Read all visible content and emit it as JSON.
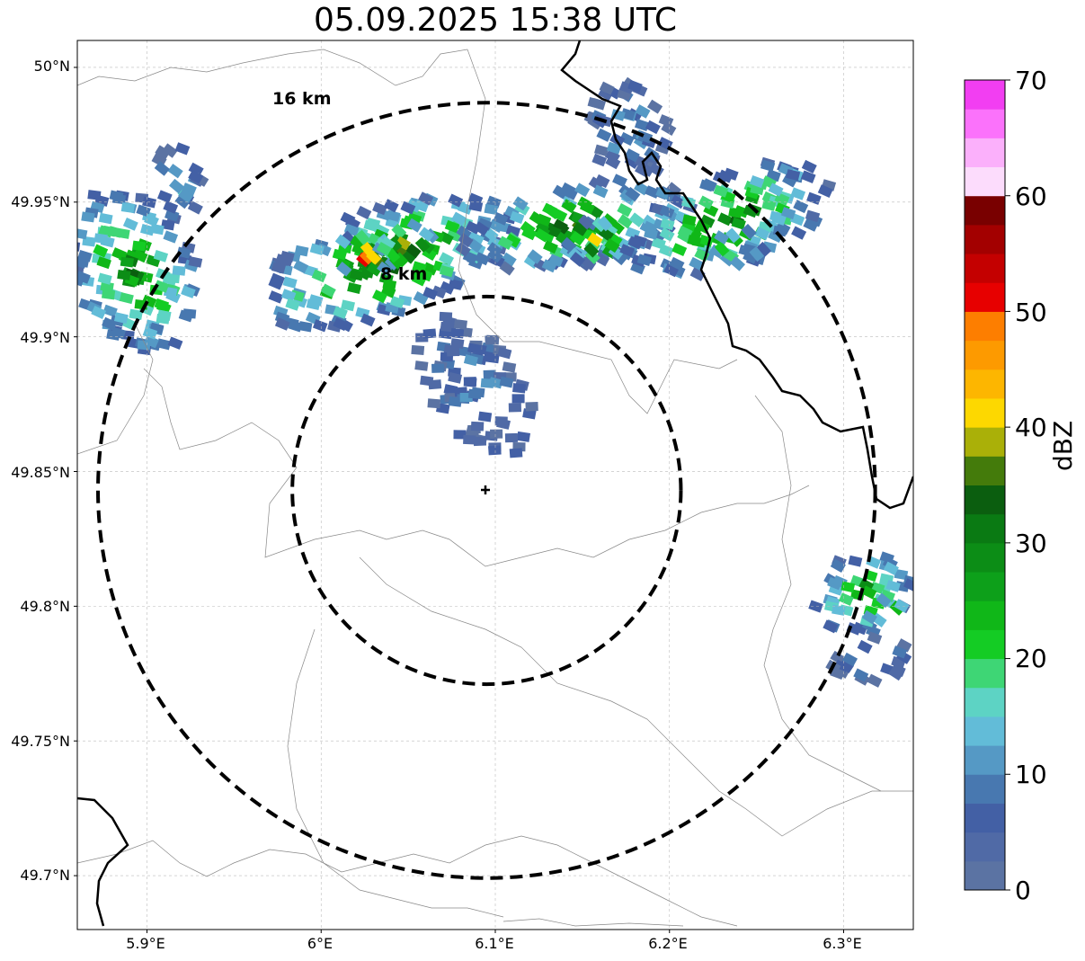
{
  "title": "05.09.2025 15:38 UTC",
  "latitude_labels": [
    "50°N",
    "49.95°N",
    "49.9°N",
    "49.85°N",
    "49.8°N",
    "49.75°N",
    "49.7°N"
  ],
  "longitude_labels": [
    "5.9°E",
    "6°E",
    "6.1°E",
    "6.2°E",
    "6.3°E"
  ],
  "range_rings": [
    {
      "label": "8 km",
      "radius_km": 8
    },
    {
      "label": "16 km",
      "radius_km": 16
    }
  ],
  "radar_site": {
    "lat": 49.843,
    "lon": 6.095,
    "marker": "plus-icon"
  },
  "colorbar": {
    "title": "dBZ",
    "tick_labels": [
      "0",
      "10",
      "20",
      "30",
      "40",
      "50",
      "60",
      "70"
    ],
    "range": [
      0,
      70
    ],
    "step": 2.5,
    "colors": [
      "#5b73a3",
      "#506aa6",
      "#4360a5",
      "#4878b0",
      "#5599c5",
      "#62bcd8",
      "#5dd3c4",
      "#3ed675",
      "#14cc24",
      "#10b718",
      "#0da01a",
      "#0c8d16",
      "#0a7a13",
      "#0b5e0f",
      "#447b0b",
      "#aab008",
      "#fdd800",
      "#fdb600",
      "#fd9a00",
      "#fd7e00",
      "#e70000",
      "#c40000",
      "#a30000",
      "#790000",
      "#fcdcfc",
      "#fbb0fb",
      "#fb72fb",
      "#f23ef2"
    ]
  },
  "map": {
    "lat_range": [
      49.68,
      50.01
    ],
    "lon_range": [
      5.86,
      6.34
    ],
    "gridlines": true,
    "background": "#ffffff"
  }
}
